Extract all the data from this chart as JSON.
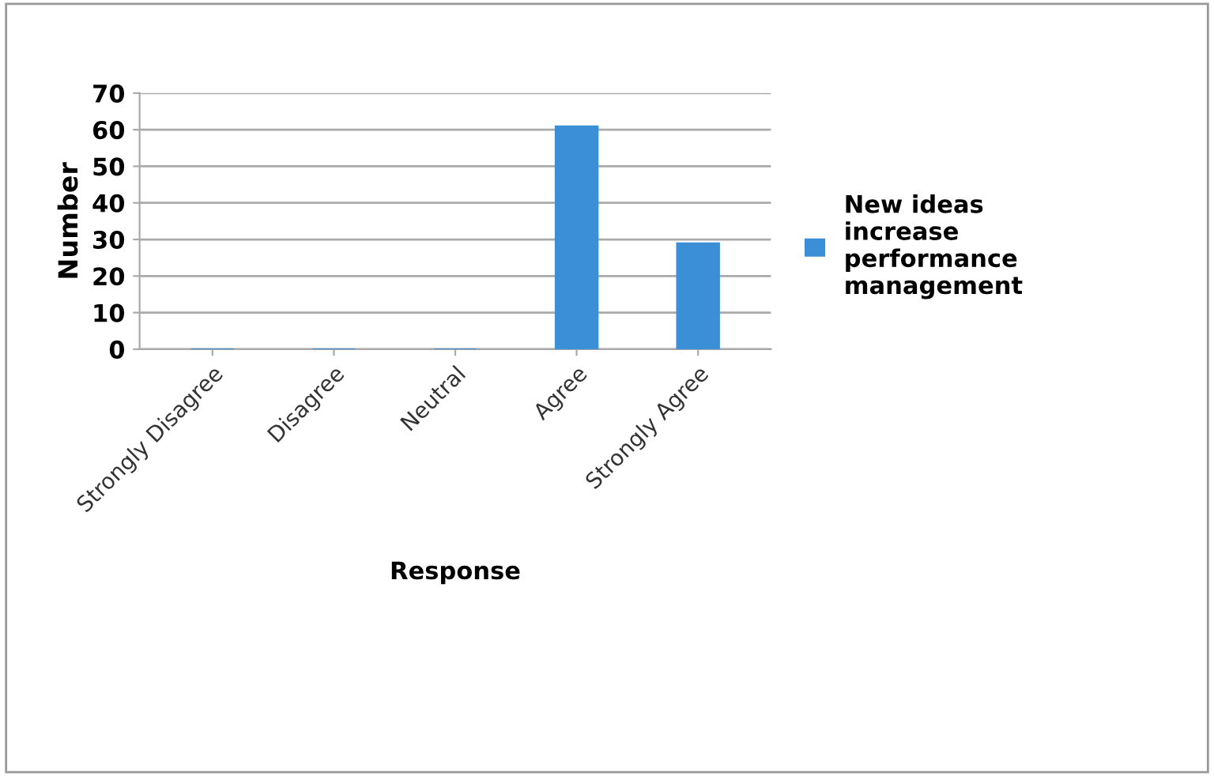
{
  "chart_data": {
    "type": "bar",
    "categories": [
      "Strongly Disagree",
      "Disagree",
      "Neutral",
      "Agree",
      "Strongly Agree"
    ],
    "series": [
      {
        "name": "New ideas increase performance management",
        "color": "#3a8fd6",
        "values": [
          0,
          0,
          0,
          61,
          29
        ]
      }
    ],
    "xlabel": "Response",
    "ylabel": "Number",
    "ylim": [
      0,
      70
    ],
    "yticks": [
      0,
      10,
      20,
      30,
      40,
      50,
      60,
      70
    ],
    "grid": "y",
    "legend": "right"
  }
}
